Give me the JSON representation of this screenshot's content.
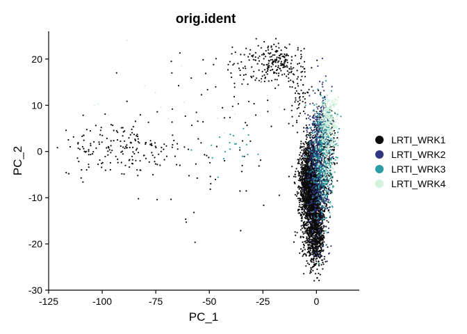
{
  "chart_data": {
    "type": "scatter",
    "title": "orig.ident",
    "xlabel": "PC_1",
    "ylabel": "PC_2",
    "xlim": [
      -125,
      20
    ],
    "ylim": [
      -30,
      26
    ],
    "xticks": [
      -125,
      -100,
      -75,
      -50,
      -25,
      0
    ],
    "yticks": [
      -30,
      -20,
      -10,
      0,
      10,
      20
    ],
    "grid": false,
    "legend_position": "right",
    "series": [
      {
        "name": "LRTI_WRK1",
        "color": "#0b0b0b",
        "clusters": [
          {
            "cx": -1.5,
            "cy": -8,
            "sx": 2.8,
            "sy": 5.5,
            "n": 2600
          },
          {
            "cx": -4.5,
            "cy": -5,
            "sx": 2.5,
            "sy": 2.2,
            "n": 250
          },
          {
            "cx": -0.5,
            "cy": -19,
            "sx": 2.2,
            "sy": 3.2,
            "n": 500
          },
          {
            "cx": 4,
            "cy": 2,
            "sx": 2.2,
            "sy": 4,
            "n": 300
          },
          {
            "cx": -18,
            "cy": 19,
            "sx": 6,
            "sy": 2,
            "n": 180
          },
          {
            "cx": -30,
            "cy": 19,
            "sx": 8,
            "sy": 2.5,
            "n": 60
          },
          {
            "cx": -8,
            "cy": 11,
            "sx": 3,
            "sy": 4,
            "n": 70
          },
          {
            "cx": -90,
            "cy": 0.5,
            "sx": 15,
            "sy": 2.8,
            "n": 170
          },
          {
            "cx": -70,
            "cy": 3,
            "sx": 25,
            "sy": 10,
            "n": 50
          },
          {
            "cx": -40,
            "cy": 3,
            "sx": 12,
            "sy": 8,
            "n": 40
          }
        ]
      },
      {
        "name": "LRTI_WRK2",
        "color": "#2f3580",
        "clusters": [
          {
            "cx": 1,
            "cy": -3,
            "sx": 2.5,
            "sy": 7,
            "n": 500
          },
          {
            "cx": 3,
            "cy": 5,
            "sx": 2.5,
            "sy": 3.5,
            "n": 120
          }
        ]
      },
      {
        "name": "LRTI_WRK3",
        "color": "#2d9ba3",
        "clusters": [
          {
            "cx": 3,
            "cy": -3,
            "sx": 2.5,
            "sy": 6,
            "n": 380
          },
          {
            "cx": 4,
            "cy": 5,
            "sx": 2.5,
            "sy": 3.5,
            "n": 140
          },
          {
            "cx": -40,
            "cy": 0.5,
            "sx": 8,
            "sy": 2,
            "n": 20
          }
        ]
      },
      {
        "name": "LRTI_WRK4",
        "color": "#d4f1dd",
        "clusters": [
          {
            "cx": 5.5,
            "cy": 6.5,
            "sx": 2.2,
            "sy": 3,
            "n": 280
          },
          {
            "cx": 4,
            "cy": -2,
            "sx": 2.5,
            "sy": 5,
            "n": 160
          },
          {
            "cx": -60,
            "cy": 8,
            "sx": 25,
            "sy": 10,
            "n": 20
          }
        ]
      }
    ]
  }
}
